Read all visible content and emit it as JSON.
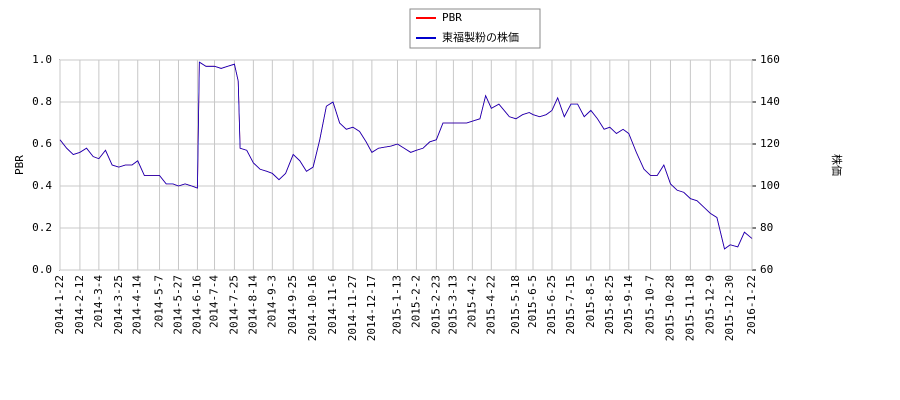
{
  "chart_data": {
    "type": "line",
    "y_label": "PBR",
    "y2_label": "株価",
    "x": [
      "2014-1-22",
      "2014-1-29",
      "2014-2-5",
      "2014-2-12",
      "2014-2-19",
      "2014-2-26",
      "2014-3-4",
      "2014-3-11",
      "2014-3-18",
      "2014-3-25",
      "2014-4-1",
      "2014-4-8",
      "2014-4-14",
      "2014-4-21",
      "2014-4-28",
      "2014-5-7",
      "2014-5-14",
      "2014-5-21",
      "2014-5-27",
      "2014-6-3",
      "2014-6-10",
      "2014-6-16",
      "2014-6-18",
      "2014-6-25",
      "2014-7-4",
      "2014-7-11",
      "2014-7-18",
      "2014-7-25",
      "2014-7-29",
      "2014-7-31",
      "2014-8-7",
      "2014-8-14",
      "2014-8-21",
      "2014-8-28",
      "2014-9-3",
      "2014-9-10",
      "2014-9-17",
      "2014-9-25",
      "2014-10-2",
      "2014-10-9",
      "2014-10-16",
      "2014-10-23",
      "2014-10-30",
      "2014-11-6",
      "2014-11-13",
      "2014-11-20",
      "2014-11-27",
      "2014-12-4",
      "2014-12-11",
      "2014-12-17",
      "2014-12-24",
      "2015-1-6",
      "2015-1-13",
      "2015-1-20",
      "2015-1-27",
      "2015-2-2",
      "2015-2-9",
      "2015-2-16",
      "2015-2-23",
      "2015-3-2",
      "2015-3-9",
      "2015-3-13",
      "2015-3-20",
      "2015-3-27",
      "2015-4-3",
      "2015-4-10",
      "2015-4-16",
      "2015-4-22",
      "2015-4-30",
      "2015-5-11",
      "2015-5-18",
      "2015-5-25",
      "2015-6-1",
      "2015-6-5",
      "2015-6-12",
      "2015-6-19",
      "2015-6-25",
      "2015-7-1",
      "2015-7-8",
      "2015-7-15",
      "2015-7-22",
      "2015-7-29",
      "2015-8-5",
      "2015-8-12",
      "2015-8-19",
      "2015-8-25",
      "2015-9-1",
      "2015-9-8",
      "2015-9-14",
      "2015-9-22",
      "2015-9-30",
      "2015-10-7",
      "2015-10-14",
      "2015-10-21",
      "2015-10-28",
      "2015-11-4",
      "2015-11-11",
      "2015-11-18",
      "2015-11-25",
      "2015-12-2",
      "2015-12-9",
      "2015-12-16",
      "2015-12-24",
      "2015-12-30",
      "2016-1-7",
      "2016-1-14",
      "2016-1-22"
    ],
    "series": [
      {
        "name": "PBR",
        "color": "#ff0000",
        "axis": "y",
        "values": [
          0.62,
          0.58,
          0.55,
          0.56,
          0.58,
          0.54,
          0.53,
          0.57,
          0.5,
          0.49,
          0.5,
          0.5,
          0.52,
          0.45,
          0.45,
          0.45,
          0.41,
          0.41,
          0.4,
          0.41,
          0.4,
          0.39,
          0.99,
          0.97,
          0.97,
          0.96,
          0.97,
          0.98,
          0.9,
          0.58,
          0.57,
          0.51,
          0.48,
          0.47,
          0.46,
          0.43,
          0.46,
          0.55,
          0.52,
          0.47,
          0.49,
          0.62,
          0.78,
          0.8,
          0.7,
          0.67,
          0.68,
          0.66,
          0.61,
          0.56,
          0.58,
          0.59,
          0.6,
          0.58,
          0.56,
          0.57,
          0.58,
          0.61,
          0.62,
          0.7,
          0.7,
          0.7,
          0.7,
          0.7,
          0.71,
          0.72,
          0.83,
          0.77,
          0.79,
          0.73,
          0.72,
          0.74,
          0.75,
          0.74,
          0.73,
          0.74,
          0.76,
          0.82,
          0.73,
          0.79,
          0.79,
          0.73,
          0.76,
          0.72,
          0.67,
          0.68,
          0.65,
          0.67,
          0.65,
          0.56,
          0.48,
          0.45,
          0.45,
          0.5,
          0.41,
          0.38,
          0.37,
          0.34,
          0.33,
          0.3,
          0.27,
          0.25,
          0.1,
          0.12,
          0.11,
          0.18,
          0.15
        ]
      },
      {
        "name": "東福製粉の株価",
        "color": "#0000cc",
        "axis": "y2",
        "values": [
          122,
          118,
          115,
          116,
          118,
          114,
          113,
          117,
          110,
          109,
          110,
          110,
          112,
          105,
          105,
          105,
          101,
          101,
          100,
          101,
          100,
          99,
          159,
          157,
          157,
          156,
          157,
          158,
          150,
          118,
          117,
          111,
          108,
          107,
          106,
          103,
          106,
          115,
          112,
          107,
          109,
          122,
          138,
          140,
          130,
          127,
          128,
          126,
          121,
          116,
          118,
          119,
          120,
          118,
          116,
          117,
          118,
          121,
          122,
          130,
          130,
          130,
          130,
          130,
          131,
          132,
          143,
          137,
          139,
          133,
          132,
          134,
          135,
          134,
          133,
          134,
          136,
          142,
          133,
          139,
          139,
          133,
          136,
          132,
          127,
          128,
          125,
          127,
          125,
          116,
          108,
          105,
          105,
          110,
          101,
          98,
          97,
          94,
          93,
          90,
          87,
          85,
          70,
          72,
          71,
          78,
          75
        ]
      }
    ],
    "xlim": [
      "2014-1-22",
      "2016-1-22"
    ],
    "xticks": [
      "2014-1-22",
      "2014-2-12",
      "2014-3-4",
      "2014-3-25",
      "2014-4-14",
      "2014-5-7",
      "2014-5-27",
      "2014-6-16",
      "2014-7-4",
      "2014-7-25",
      "2014-8-14",
      "2014-9-3",
      "2014-9-25",
      "2014-10-16",
      "2014-11-6",
      "2014-11-27",
      "2014-12-17",
      "2015-1-13",
      "2015-2-2",
      "2015-2-23",
      "2015-3-13",
      "2015-4-2",
      "2015-4-22",
      "2015-5-18",
      "2015-6-5",
      "2015-6-25",
      "2015-7-15",
      "2015-8-5",
      "2015-8-25",
      "2015-9-14",
      "2015-10-7",
      "2015-10-28",
      "2015-11-18",
      "2015-12-9",
      "2015-12-30",
      "2016-1-22"
    ],
    "ylim": [
      0,
      1
    ],
    "yticks": [
      {
        "value": 0,
        "label": "0.0"
      },
      {
        "value": 0.2,
        "label": "0.2"
      },
      {
        "value": 0.4,
        "label": "0.4"
      },
      {
        "value": 0.6,
        "label": "0.6"
      },
      {
        "value": 0.8,
        "label": "0.8"
      },
      {
        "value": 1,
        "label": "1.0"
      }
    ],
    "y2lim": [
      60,
      160
    ],
    "y2ticks": [
      60,
      80,
      100,
      120,
      140,
      160
    ],
    "grid": true
  }
}
